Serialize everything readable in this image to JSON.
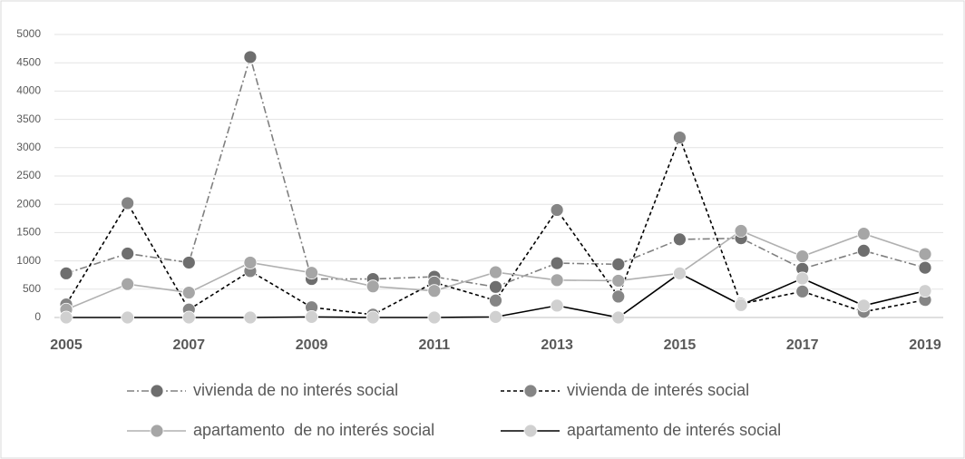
{
  "chart_data": {
    "type": "line",
    "categories": [
      "2005",
      null,
      "2007",
      null,
      "2009",
      null,
      "2011",
      null,
      "2013",
      null,
      "2015",
      null,
      "2017",
      null,
      "2019"
    ],
    "ylim": [
      0,
      5000
    ],
    "yticks": [
      0,
      500,
      1000,
      1500,
      2000,
      2500,
      3000,
      3500,
      4000,
      4500,
      5000
    ],
    "grid": true,
    "legend": "bottom",
    "series": [
      {
        "name": "vivienda de no interés social",
        "color": "#808080",
        "marker_color": "#6e6e6e",
        "dash": "dashdot",
        "values": [
          780,
          1130,
          970,
          4600,
          680,
          680,
          720,
          540,
          960,
          940,
          1380,
          1400,
          860,
          1180,
          880
        ]
      },
      {
        "name": "vivienda de interés social",
        "color": "#000000",
        "marker_color": "#858585",
        "dash": "dashed",
        "values": [
          230,
          2020,
          140,
          820,
          180,
          50,
          620,
          300,
          1900,
          370,
          3180,
          240,
          460,
          100,
          310
        ]
      },
      {
        "name": "apartamento  de no interés social",
        "color": "#b0b0b0",
        "marker_color": "#a6a6a6",
        "dash": "solid",
        "values": [
          140,
          590,
          440,
          970,
          790,
          550,
          470,
          800,
          660,
          650,
          780,
          1530,
          1080,
          1480,
          1120
        ]
      },
      {
        "name": "apartamento de interés social",
        "color": "#000000",
        "marker_color": "#d0d0d0",
        "dash": "solid",
        "values": [
          0,
          0,
          0,
          0,
          10,
          0,
          0,
          10,
          210,
          0,
          780,
          220,
          690,
          210,
          470
        ]
      }
    ]
  }
}
